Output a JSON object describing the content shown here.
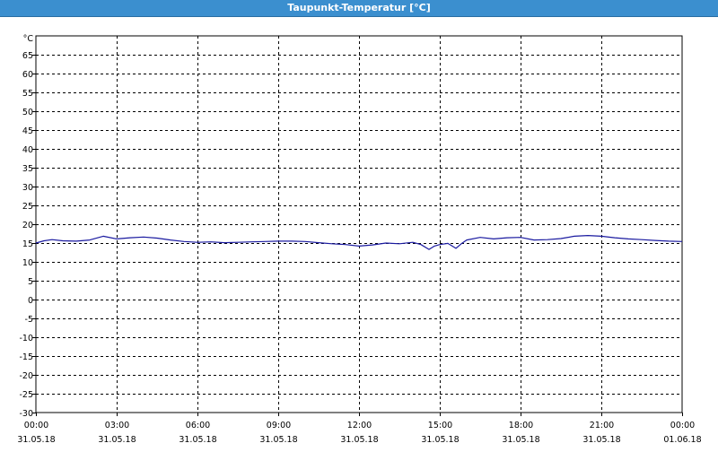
{
  "window": {
    "title": "Taupunkt-Temperatur [°C]"
  },
  "colors": {
    "title_bar": "#3b8fcf",
    "series": "#1a1aa0",
    "grid": "#000000"
  },
  "chart_data": {
    "type": "line",
    "title": "Taupunkt-Temperatur [°C]",
    "unit_label": "°C",
    "xlabel": "",
    "ylabel": "°C",
    "ylim": [
      -30,
      70
    ],
    "yticks": [
      65,
      60,
      55,
      50,
      45,
      40,
      35,
      30,
      25,
      20,
      15,
      10,
      5,
      0,
      -5,
      -10,
      -15,
      -20,
      -25,
      -30
    ],
    "xlim_hours": [
      0,
      24
    ],
    "grid": true,
    "legend": "none",
    "x_ticks": [
      {
        "time": "00:00",
        "date": "31.05.18"
      },
      {
        "time": "03:00",
        "date": "31.05.18"
      },
      {
        "time": "06:00",
        "date": "31.05.18"
      },
      {
        "time": "09:00",
        "date": "31.05.18"
      },
      {
        "time": "12:00",
        "date": "31.05.18"
      },
      {
        "time": "15:00",
        "date": "31.05.18"
      },
      {
        "time": "18:00",
        "date": "31.05.18"
      },
      {
        "time": "21:00",
        "date": "31.05.18"
      },
      {
        "time": "00:00",
        "date": "01.06.18"
      }
    ],
    "series": [
      {
        "x": [
          0.0,
          0.3,
          0.6,
          1.0,
          1.5,
          2.0,
          2.5,
          3.0,
          3.5,
          4.0,
          4.5,
          5.0,
          5.5,
          6.0,
          6.5,
          7.0,
          7.5,
          8.0,
          8.5,
          9.0,
          9.5,
          10.0,
          10.5,
          11.0,
          11.5,
          12.0,
          12.5,
          13.0,
          13.5,
          14.0,
          14.3,
          14.6,
          14.8,
          15.0,
          15.3,
          15.6,
          15.8,
          16.0,
          16.5,
          17.0,
          17.5,
          18.0,
          18.5,
          19.0,
          19.5,
          20.0,
          20.5,
          21.0,
          21.5,
          22.0,
          22.5,
          23.0,
          23.5,
          24.0
        ],
        "values": [
          15.0,
          15.6,
          15.9,
          15.6,
          15.5,
          15.8,
          16.8,
          16.1,
          16.4,
          16.6,
          16.3,
          15.8,
          15.4,
          15.2,
          15.3,
          15.1,
          15.2,
          15.3,
          15.4,
          15.5,
          15.5,
          15.4,
          15.1,
          14.8,
          14.6,
          14.2,
          14.5,
          15.0,
          14.8,
          15.2,
          14.6,
          13.3,
          14.2,
          14.6,
          14.9,
          13.6,
          14.8,
          15.8,
          16.5,
          16.1,
          16.4,
          16.5,
          15.8,
          15.9,
          16.2,
          16.8,
          17.0,
          16.8,
          16.4,
          16.1,
          15.9,
          15.7,
          15.5,
          15.4
        ]
      }
    ]
  }
}
